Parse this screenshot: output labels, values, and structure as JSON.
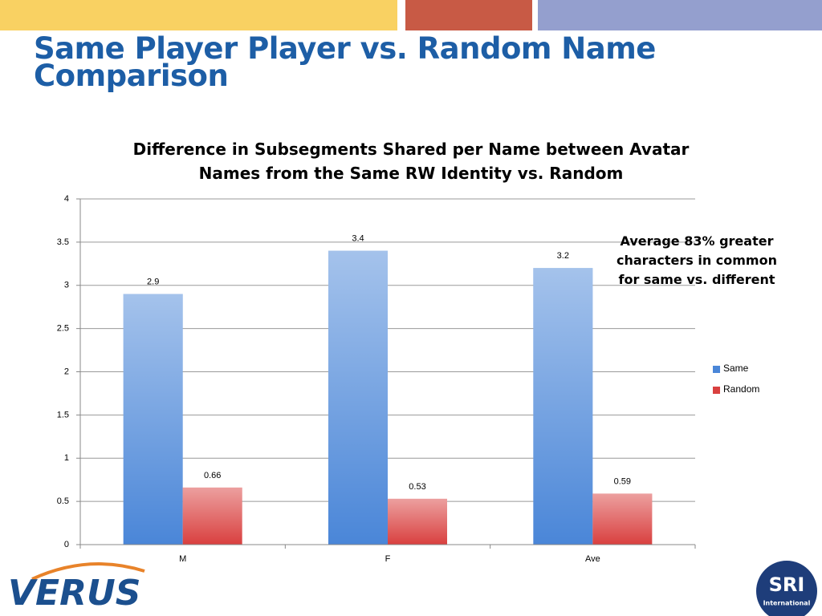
{
  "slide_title": "Same Player Player vs. Random Name Comparison",
  "chart_data": {
    "type": "bar",
    "title": "Difference in Subsegments Shared per Name between Avatar Names from the Same RW Identity vs. Random",
    "annotation": "Average 83% greater characters in common for same vs. different",
    "categories": [
      "M",
      "F",
      "Ave"
    ],
    "series": [
      {
        "name": "Same",
        "color": "#4a86d8",
        "values": [
          2.9,
          3.4,
          3.2
        ]
      },
      {
        "name": "Random",
        "color": "#d9403f",
        "values": [
          0.66,
          0.53,
          0.59
        ]
      }
    ],
    "ylim": [
      0,
      4
    ],
    "yticks": [
      0,
      0.5,
      1,
      1.5,
      2,
      2.5,
      3,
      3.5,
      4
    ],
    "grid": true,
    "legend": "right"
  },
  "logos": {
    "left": "VERUS",
    "right_top": "SRI",
    "right_bottom": "International"
  }
}
